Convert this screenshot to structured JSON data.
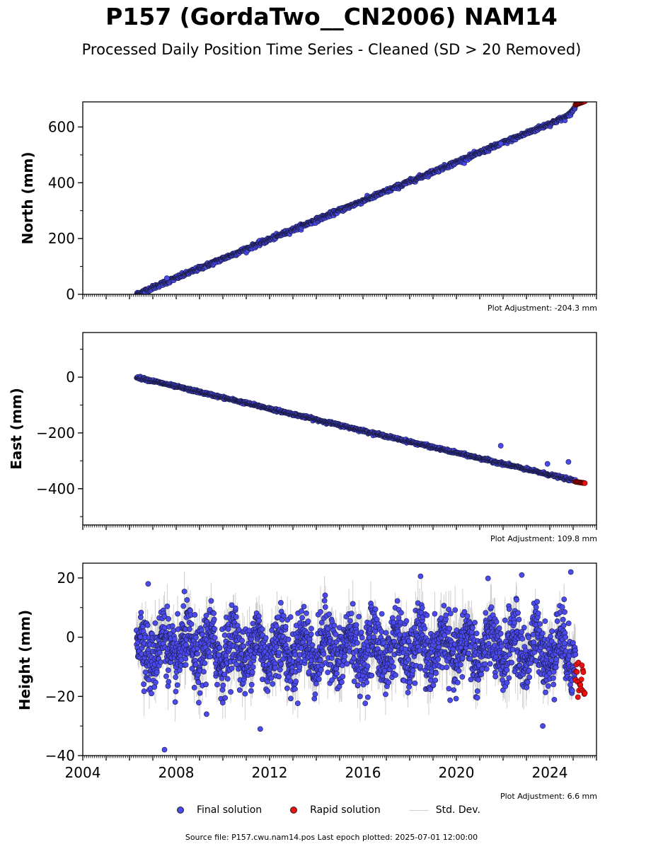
{
  "title": "P157 (GordaTwo__CN2006) NAM14",
  "subtitle": "Processed Daily Position Time Series - Cleaned (SD > 20 Removed)",
  "legend": {
    "final": "Final solution",
    "rapid": "Rapid solution",
    "std": "Std. Dev."
  },
  "colors": {
    "final": "#4a4aef",
    "rapid": "#ee1111",
    "std": "#c8c8c8",
    "edge": "#1a1a40"
  },
  "source": "Source file: P157.cwu.nam14.pos  Last epoch plotted: 2025-07-01 12:00:00",
  "chart_data": [
    {
      "type": "scatter",
      "ylabel": "North (mm)",
      "adjustment": "Plot Adjustment: -204.3 mm",
      "xlim": [
        2004.0,
        2026.0
      ],
      "ylim": [
        0,
        690
      ],
      "yticks": [
        0,
        200,
        400,
        600
      ],
      "ytick_labels": [
        "0",
        "200",
        "400",
        "600"
      ],
      "final_series": {
        "start": 2006.3,
        "end": 2025.1,
        "y_start": 0,
        "y_end": 650,
        "noise": 4,
        "outliers": [
          {
            "x": 2021.9,
            "y": 540
          },
          {
            "x": 2007.6,
            "y": 58
          }
        ]
      },
      "rapid_series": {
        "start": 2025.1,
        "end": 2025.5,
        "y_start": 680,
        "y_end": 692
      },
      "steep_end": {
        "x": 2024.8,
        "y": 672
      }
    },
    {
      "type": "scatter",
      "ylabel": "East (mm)",
      "adjustment": "Plot Adjustment: 109.8 mm",
      "xlim": [
        2004.0,
        2026.0
      ],
      "ylim": [
        -530,
        160
      ],
      "yticks": [
        -400,
        -200,
        0
      ],
      "ytick_labels": [
        "−400",
        "−200",
        "0"
      ],
      "final_series": {
        "start": 2006.3,
        "end": 2025.1,
        "y_start": 0,
        "y_end": -372,
        "noise": 2.5,
        "outliers": [
          {
            "x": 2021.9,
            "y": -246
          },
          {
            "x": 2024.8,
            "y": -304
          },
          {
            "x": 2023.9,
            "y": -311
          }
        ]
      },
      "rapid_series": {
        "start": 2025.1,
        "end": 2025.5,
        "y_start": -375,
        "y_end": -380
      }
    },
    {
      "type": "scatter",
      "ylabel": "Height (mm)",
      "adjustment": "Plot Adjustment: 6.6 mm",
      "xlim": [
        2004.0,
        2026.0
      ],
      "ylim": [
        -40,
        25
      ],
      "yticks": [
        -40,
        -20,
        0,
        20
      ],
      "ytick_labels": [
        "−40",
        "−20",
        "0",
        "20"
      ],
      "xticks": [
        2004,
        2008,
        2012,
        2016,
        2020,
        2024
      ],
      "xtick_labels": [
        "2004",
        "2008",
        "2012",
        "2016",
        "2020",
        "2024"
      ],
      "final_series": {
        "start": 2006.3,
        "end": 2025.1,
        "center": -4,
        "amplitude": 5,
        "noise": 5.5,
        "outliers": [
          {
            "x": 2007.5,
            "y": -38
          },
          {
            "x": 2024.9,
            "y": 22
          },
          {
            "x": 2022.8,
            "y": 21
          },
          {
            "x": 2006.8,
            "y": 18
          },
          {
            "x": 2009.3,
            "y": -26
          },
          {
            "x": 2011.6,
            "y": -31
          },
          {
            "x": 2023.7,
            "y": -30
          }
        ]
      },
      "rapid_series": {
        "start": 2025.1,
        "end": 2025.5,
        "y_min": -21,
        "y_max": -7
      }
    }
  ]
}
